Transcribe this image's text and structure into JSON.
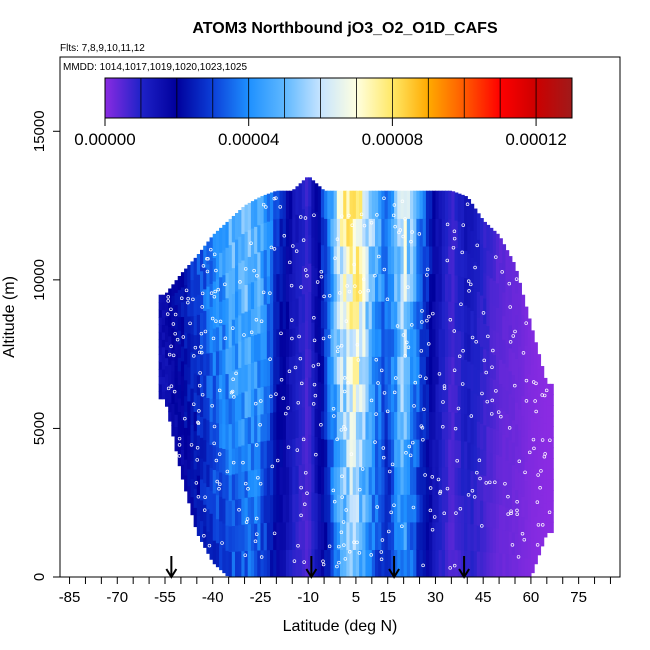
{
  "chart_data": {
    "type": "heatmap",
    "title": "ATOM3 Northbound jO3_O2_O1D_CAFS",
    "flights_note": "Flts: 7,8,9,10,11,12",
    "dates_note": "MMDD: 1014,1017,1019,1020,1023,1025",
    "xlabel": "Latitude (deg N)",
    "ylabel": "Altitude (m)",
    "xlim": [
      -88,
      88
    ],
    "ylim": [
      0,
      17500
    ],
    "x_ticks": [
      "-85",
      "-70",
      "-55",
      "-40",
      "-25",
      "-10",
      "5",
      "15",
      "30",
      "45",
      "60",
      "75"
    ],
    "x_tick_values": [
      -85,
      -70,
      -55,
      -40,
      -25,
      -10,
      5,
      15,
      30,
      45,
      60,
      75
    ],
    "y_ticks": [
      "0",
      "5000",
      "10000",
      "15000"
    ],
    "y_tick_values": [
      0,
      5000,
      10000,
      15000
    ],
    "colorbar": {
      "range": [
        0,
        0.00013
      ],
      "tick_labels": [
        "0.00000",
        "0.00004",
        "0.00008",
        "0.00012"
      ],
      "tick_values": [
        0,
        4e-05,
        8e-05,
        0.00012
      ],
      "colors": [
        "#8a2be2",
        "#1f22c8",
        "#00009c",
        "#0c3fd8",
        "#1e90ff",
        "#5fb8ff",
        "#c6e4ff",
        "#ffffe0",
        "#ffe866",
        "#ffaa00",
        "#ff5a00",
        "#ff0000",
        "#cc0000",
        "#a01a1a"
      ]
    },
    "profile": {
      "latitudes": [
        -55,
        -50,
        -45,
        -40,
        -35,
        -30,
        -25,
        -20,
        -15,
        -10,
        -5,
        0,
        5,
        10,
        15,
        20,
        25,
        30,
        35,
        40,
        45,
        50,
        55,
        60,
        65
      ],
      "bottom_alt_m": [
        6000,
        3500,
        1500,
        500,
        0,
        0,
        0,
        0,
        0,
        0,
        0,
        0,
        0,
        0,
        0,
        0,
        0,
        0,
        0,
        0,
        0,
        0,
        0,
        0,
        1500
      ],
      "top_alt_m": [
        9500,
        10200,
        10800,
        11500,
        12000,
        12500,
        12800,
        13000,
        13000,
        13500,
        13000,
        13000,
        13000,
        13000,
        13000,
        13000,
        13000,
        13000,
        13000,
        12800,
        12000,
        11500,
        10500,
        8500,
        6500
      ],
      "j_values_1e5": [
        1.5,
        2.0,
        2.6,
        3.4,
        4.0,
        4.4,
        4.0,
        2.5,
        1.3,
        0.6,
        2.5,
        5.5,
        6.8,
        4.5,
        3.0,
        5.5,
        3.2,
        1.5,
        0.6,
        1.2,
        0.8,
        0.4,
        0.3,
        0.1,
        0.0
      ],
      "arrow_latitudes": [
        -53,
        -9,
        17,
        39
      ]
    }
  }
}
